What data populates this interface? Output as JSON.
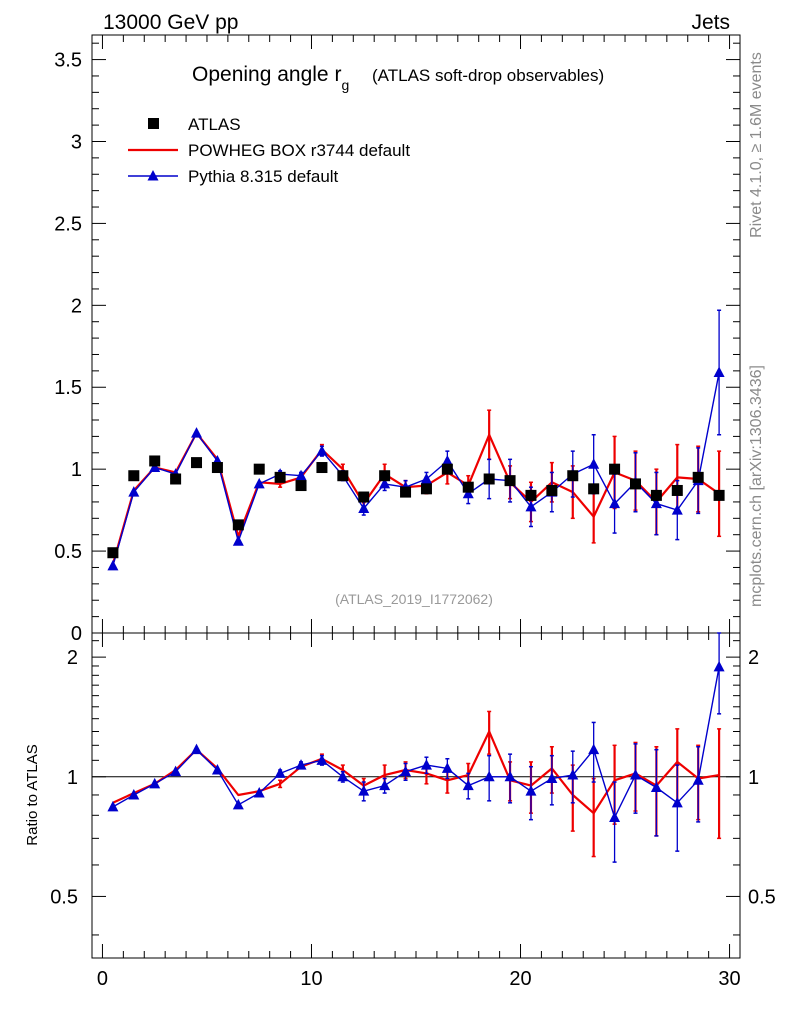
{
  "header": {
    "beam_label": "13000 GeV pp",
    "process_label": "Jets"
  },
  "side_labels": {
    "rivet": "Rivet 4.1.0, ≥ 1.6M events",
    "mcplots": "mcplots.cern.ch [arXiv:1306.3436]"
  },
  "chart_data": {
    "type": "line",
    "title": "Opening angle r",
    "title_subscript": "g",
    "subtitle": "(ATLAS soft-drop observables)",
    "analysis_label": "(ATLAS_2019_I1772062)",
    "xlabel": "",
    "ylabel": "",
    "ratio_ylabel": "Ratio to ATLAS",
    "xlim": [
      -0.5,
      30.5
    ],
    "ylim": [
      0,
      3.65
    ],
    "ratio_ylim": [
      0.35,
      2.3
    ],
    "x_ticks": [
      "0",
      "10",
      "20",
      "30"
    ],
    "y_ticks": [
      "0",
      "0.5",
      "1",
      "1.5",
      "2",
      "2.5",
      "3",
      "3.5"
    ],
    "ratio_y_ticks": [
      "0.5",
      "1",
      "2"
    ],
    "ratio_y_ticks_right": [
      "0.5",
      "1",
      "2"
    ],
    "legend_position": "top-left",
    "x": [
      0.5,
      1.5,
      2.5,
      3.5,
      4.5,
      5.5,
      6.5,
      7.5,
      8.5,
      9.5,
      10.5,
      11.5,
      12.5,
      13.5,
      14.5,
      15.5,
      16.5,
      17.5,
      18.5,
      19.5,
      20.5,
      21.5,
      22.5,
      23.5,
      24.5,
      25.5,
      26.5,
      27.5,
      28.5,
      29.5
    ],
    "series": [
      {
        "name": "ATLAS",
        "color": "#000000",
        "marker": "square",
        "values": [
          0.49,
          0.96,
          1.05,
          0.94,
          1.04,
          1.01,
          0.66,
          1.0,
          0.95,
          0.9,
          1.01,
          0.96,
          0.83,
          0.96,
          0.86,
          0.88,
          1.0,
          0.89,
          0.94,
          0.93,
          0.84,
          0.87,
          0.96,
          0.88,
          1.0,
          0.91,
          0.84,
          0.87,
          0.95,
          0.84
        ]
      },
      {
        "name": "POWHEG BOX r3744 default",
        "color": "#ee0000",
        "marker": "none",
        "values": [
          0.42,
          0.87,
          1.01,
          0.98,
          1.22,
          1.06,
          0.59,
          0.92,
          0.91,
          0.95,
          1.12,
          1.0,
          0.79,
          0.97,
          0.89,
          0.9,
          0.98,
          0.9,
          1.21,
          0.92,
          0.8,
          0.92,
          0.86,
          0.71,
          0.98,
          0.93,
          0.8,
          0.95,
          0.94,
          0.85
        ],
        "errors": [
          0,
          0,
          0,
          0,
          0,
          0,
          0,
          0,
          0.02,
          0,
          0.03,
          0.03,
          0.03,
          0.06,
          0.04,
          0.05,
          0.07,
          0.06,
          0.15,
          0.1,
          0.12,
          0.12,
          0.16,
          0.16,
          0.22,
          0.18,
          0.2,
          0.2,
          0.2,
          0.26
        ]
      },
      {
        "name": "Pythia 8.315 default",
        "color": "#0000cc",
        "marker": "triangle",
        "values": [
          0.41,
          0.86,
          1.01,
          0.97,
          1.22,
          1.05,
          0.56,
          0.91,
          0.97,
          0.96,
          1.11,
          0.96,
          0.76,
          0.91,
          0.89,
          0.94,
          1.05,
          0.85,
          0.94,
          0.93,
          0.77,
          0.86,
          0.97,
          1.03,
          0.79,
          0.92,
          0.79,
          0.75,
          0.93,
          1.59
        ],
        "errors": [
          0,
          0,
          0,
          0,
          0,
          0,
          0,
          0,
          0.02,
          0.02,
          0.03,
          0.03,
          0.04,
          0.04,
          0.04,
          0.04,
          0.06,
          0.06,
          0.12,
          0.13,
          0.12,
          0.12,
          0.14,
          0.18,
          0.18,
          0.18,
          0.19,
          0.18,
          0.2,
          0.38
        ]
      }
    ],
    "ratio_series": [
      {
        "name": "POWHEG BOX r3744 default",
        "color": "#ee0000",
        "values": [
          0.86,
          0.91,
          0.96,
          1.04,
          1.17,
          1.05,
          0.9,
          0.92,
          0.96,
          1.06,
          1.11,
          1.04,
          0.95,
          1.01,
          1.04,
          1.02,
          0.98,
          1.01,
          1.3,
          0.98,
          0.95,
          1.05,
          0.9,
          0.81,
          0.98,
          1.02,
          0.95,
          1.09,
          0.99,
          1.01
        ],
        "errors": [
          0,
          0,
          0,
          0,
          0,
          0,
          0,
          0,
          0.02,
          0,
          0.03,
          0.03,
          0.04,
          0.06,
          0.05,
          0.06,
          0.07,
          0.07,
          0.16,
          0.11,
          0.14,
          0.14,
          0.17,
          0.18,
          0.22,
          0.2,
          0.24,
          0.23,
          0.21,
          0.31
        ]
      },
      {
        "name": "Pythia 8.315 default",
        "color": "#0000cc",
        "values": [
          0.84,
          0.9,
          0.96,
          1.03,
          1.17,
          1.04,
          0.85,
          0.91,
          1.02,
          1.07,
          1.1,
          1.0,
          0.92,
          0.95,
          1.03,
          1.07,
          1.05,
          0.95,
          1.0,
          1.0,
          0.92,
          0.99,
          1.01,
          1.17,
          0.79,
          1.01,
          0.94,
          0.86,
          0.98,
          1.89
        ],
        "errors": [
          0,
          0,
          0,
          0,
          0,
          0,
          0,
          0,
          0.02,
          0.02,
          0.03,
          0.03,
          0.05,
          0.04,
          0.05,
          0.05,
          0.06,
          0.07,
          0.13,
          0.14,
          0.14,
          0.14,
          0.15,
          0.2,
          0.18,
          0.2,
          0.23,
          0.21,
          0.21,
          0.45
        ]
      }
    ]
  }
}
